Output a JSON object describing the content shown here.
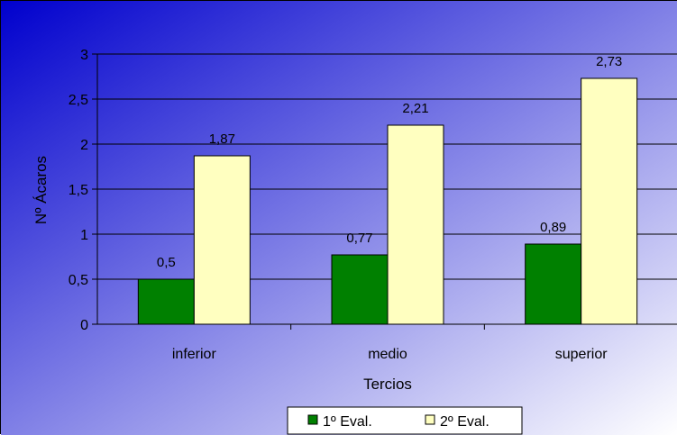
{
  "chart_data": {
    "type": "bar",
    "categories": [
      "inferior",
      "medio",
      "superior"
    ],
    "series": [
      {
        "name": "1º Eval.",
        "values": [
          0.5,
          0.77,
          0.89
        ],
        "color": "#008000",
        "data_labels": [
          "0,5",
          "0,77",
          "0,89"
        ]
      },
      {
        "name": "2º Eval.",
        "values": [
          1.87,
          2.21,
          2.73
        ],
        "color": "#FFFFC0",
        "data_labels": [
          "1,87",
          "2,21",
          "2,73"
        ]
      }
    ],
    "xlabel": "Tercios",
    "ylabel": "Nº Ácaros",
    "ylim": [
      0,
      3
    ],
    "yticks": [
      0,
      0.5,
      1,
      1.5,
      2,
      2.5,
      3
    ],
    "ytick_labels": [
      "0",
      "0,5",
      "1",
      "1,5",
      "2",
      "2,5",
      "3"
    ],
    "grid": true,
    "legend_position": "bottom",
    "colors": {
      "background_start": "#0000CD",
      "background_end": "#FFFFFF",
      "gridline": "#000000"
    }
  }
}
